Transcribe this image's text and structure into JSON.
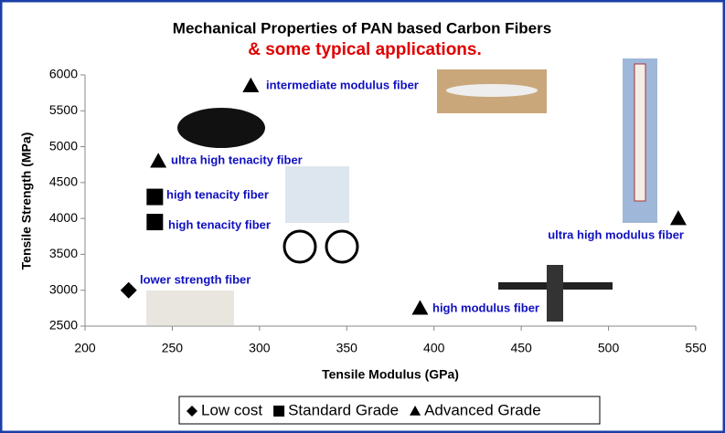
{
  "chart_data": {
    "type": "scatter",
    "title": "Mechanical Properties of PAN based Carbon Fibers",
    "subtitle": "& some typical applications.",
    "x_label": "Tensile Modulus (GPa)",
    "y_label": "Tensile Strength (MPa)",
    "xlim": [
      200,
      550
    ],
    "xticks": [
      200,
      250,
      300,
      350,
      400,
      450,
      500,
      550
    ],
    "ylim": [
      2500,
      6000
    ],
    "yticks": [
      2500,
      3000,
      3500,
      4000,
      4500,
      5000,
      5500,
      6000
    ],
    "series": [
      {
        "name": "Low cost",
        "marker": "diamond",
        "color": "#000000",
        "x": [
          225
        ],
        "values": [
          3000
        ]
      },
      {
        "name": "Standard Grade",
        "marker": "square",
        "color": "#000000",
        "x": [
          240,
          240
        ],
        "values": [
          4300,
          3950
        ]
      },
      {
        "name": "Advanced Grade",
        "marker": "triangle",
        "color": "#000000",
        "x": [
          242,
          295,
          392,
          540
        ],
        "values": [
          4800,
          5850,
          2750,
          4000
        ]
      }
    ],
    "annotations": [
      "intermediate modulus fiber",
      "ultra high tenacity fiber",
      "high tenacity fiber",
      "high tenacity fiber",
      "lower strength fiber",
      "high modulus fiber",
      "ultra high modulus fiber"
    ]
  }
}
